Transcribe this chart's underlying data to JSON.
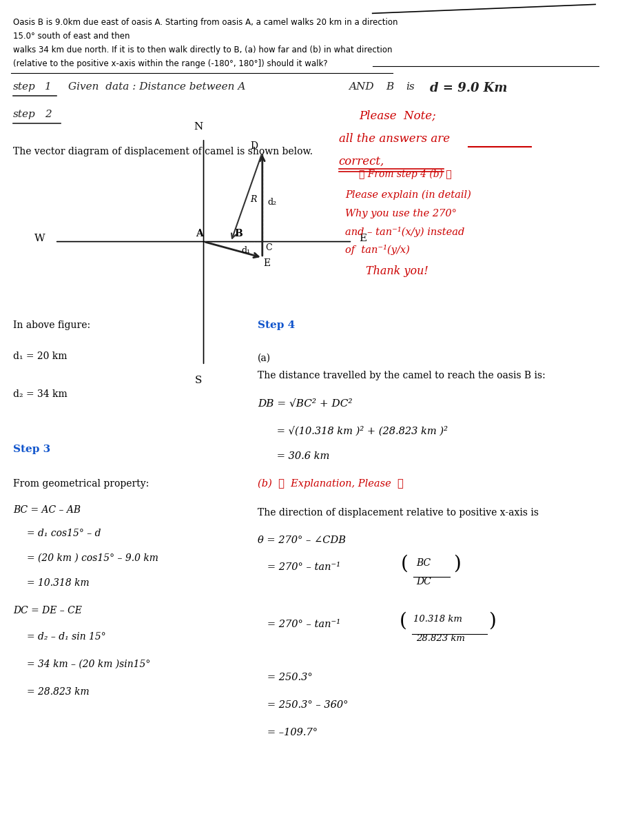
{
  "bg_color": "#ffffff",
  "problem_text": [
    "Oasis B is 9.0km due east of oasis A. Starting from oasis A, a camel walks 20 km in a direction",
    "15.0° south of east and then",
    "walks 34 km due north. If it is to then walk directly to B, (a) how far and (b) in what direction",
    "(relative to the positive x-axis within the range (-180°, 180°]) should it walk?"
  ],
  "step1_text": "step 1   Given  data : Distance between A AND B is d = 9.0 Km",
  "please_note": "Please Note;\nall the answers are\ncorrect,",
  "step2_text": "step 2",
  "step2_sub": "The vector diagram of displacement of camel is shown below.",
  "from_step4_note": "From step 4 (b)\nPlease explain (in detail)\nWhy you use the 270°\nand – tan⁻¹(x/y) instead\nof tan⁻¹(y/x)\nThank you!",
  "in_above": "In above figure:",
  "d1_label": "d₁ = 20 km",
  "d2_label": "d₂ = 34 km",
  "step3_label": "Step 3",
  "from_geom": "From geometrical property:",
  "bc_eq1": "BC = AC – AB",
  "bc_eq2": "    = d₁ cos15° – d",
  "bc_eq3": "    = (20 km ) cos15° – 9.0 km",
  "bc_eq4": "    = 10.318 km",
  "dc_eq1": "DC = DE – CE",
  "dc_eq2": "    = d₂ – d₁ sin 15°",
  "dc_eq3": "    = 34 km – (20 km )sin15°",
  "dc_eq4": "    = 28.823 km",
  "step4_label": "Step 4",
  "part_a_label": "(a)",
  "part_a_text": "The distance travelled by the camel to reach the oasis B is:",
  "db_eq1": "DB = √BC² + DC²",
  "db_eq2": "       = √(10.318 km )² + (28.823 km )²",
  "db_eq3": "       = 30.6 km",
  "part_b_label": "(b)",
  "part_b_note": "Explanation, Please",
  "part_b_text": "The direction of displacement relative to positive x-axis is",
  "theta_eq1": "θ = 270° – ∠CDB",
  "theta_eq2": "   = 270° – tan⁻¹( BC / DC )",
  "theta_eq3": "   = 270° – tan⁻¹( 10.318 km / 28.823 km )",
  "theta_eq4": "   = 250.3°",
  "theta_eq5": "   = 250.3° – 360°",
  "theta_eq6": "   = –109.7°"
}
